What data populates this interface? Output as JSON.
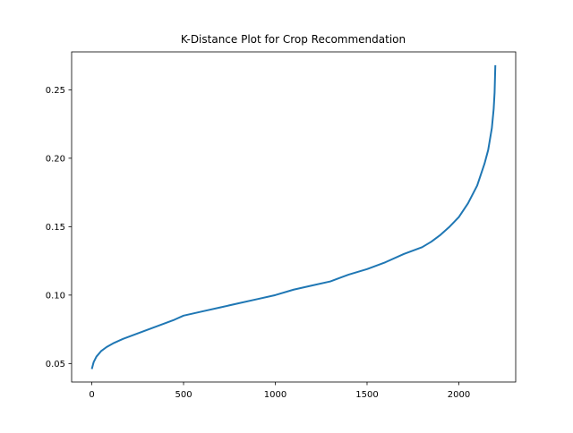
{
  "chart_data": {
    "type": "line",
    "title": "K-Distance Plot for Crop Recommendation",
    "xlabel": "",
    "ylabel": "",
    "xlim": [
      -110,
      2310
    ],
    "ylim": [
      0.0365,
      0.2777
    ],
    "xticks": [
      0,
      500,
      1000,
      1500,
      2000
    ],
    "xtick_labels": [
      "0",
      "500",
      "1000",
      "1500",
      "2000"
    ],
    "yticks": [
      0.05,
      0.1,
      0.15,
      0.2,
      0.25
    ],
    "ytick_labels": [
      "0.05",
      "0.10",
      "0.15",
      "0.20",
      "0.25"
    ],
    "grid": false,
    "legend": false,
    "series": [
      {
        "color": "#1f77b4",
        "x": [
          0,
          10,
          25,
          50,
          80,
          120,
          170,
          250,
          350,
          450,
          500,
          600,
          700,
          800,
          900,
          1000,
          1100,
          1200,
          1300,
          1400,
          1500,
          1600,
          1700,
          1800,
          1850,
          1900,
          1950,
          2000,
          2050,
          2100,
          2120,
          2140,
          2160,
          2170,
          2180,
          2185,
          2190,
          2195,
          2199
        ],
        "y": [
          0.046,
          0.051,
          0.055,
          0.059,
          0.062,
          0.065,
          0.068,
          0.072,
          0.077,
          0.082,
          0.085,
          0.088,
          0.091,
          0.094,
          0.097,
          0.1,
          0.104,
          0.107,
          0.11,
          0.115,
          0.119,
          0.124,
          0.13,
          0.135,
          0.139,
          0.144,
          0.15,
          0.157,
          0.167,
          0.18,
          0.188,
          0.196,
          0.206,
          0.214,
          0.222,
          0.229,
          0.236,
          0.248,
          0.268
        ]
      }
    ]
  }
}
